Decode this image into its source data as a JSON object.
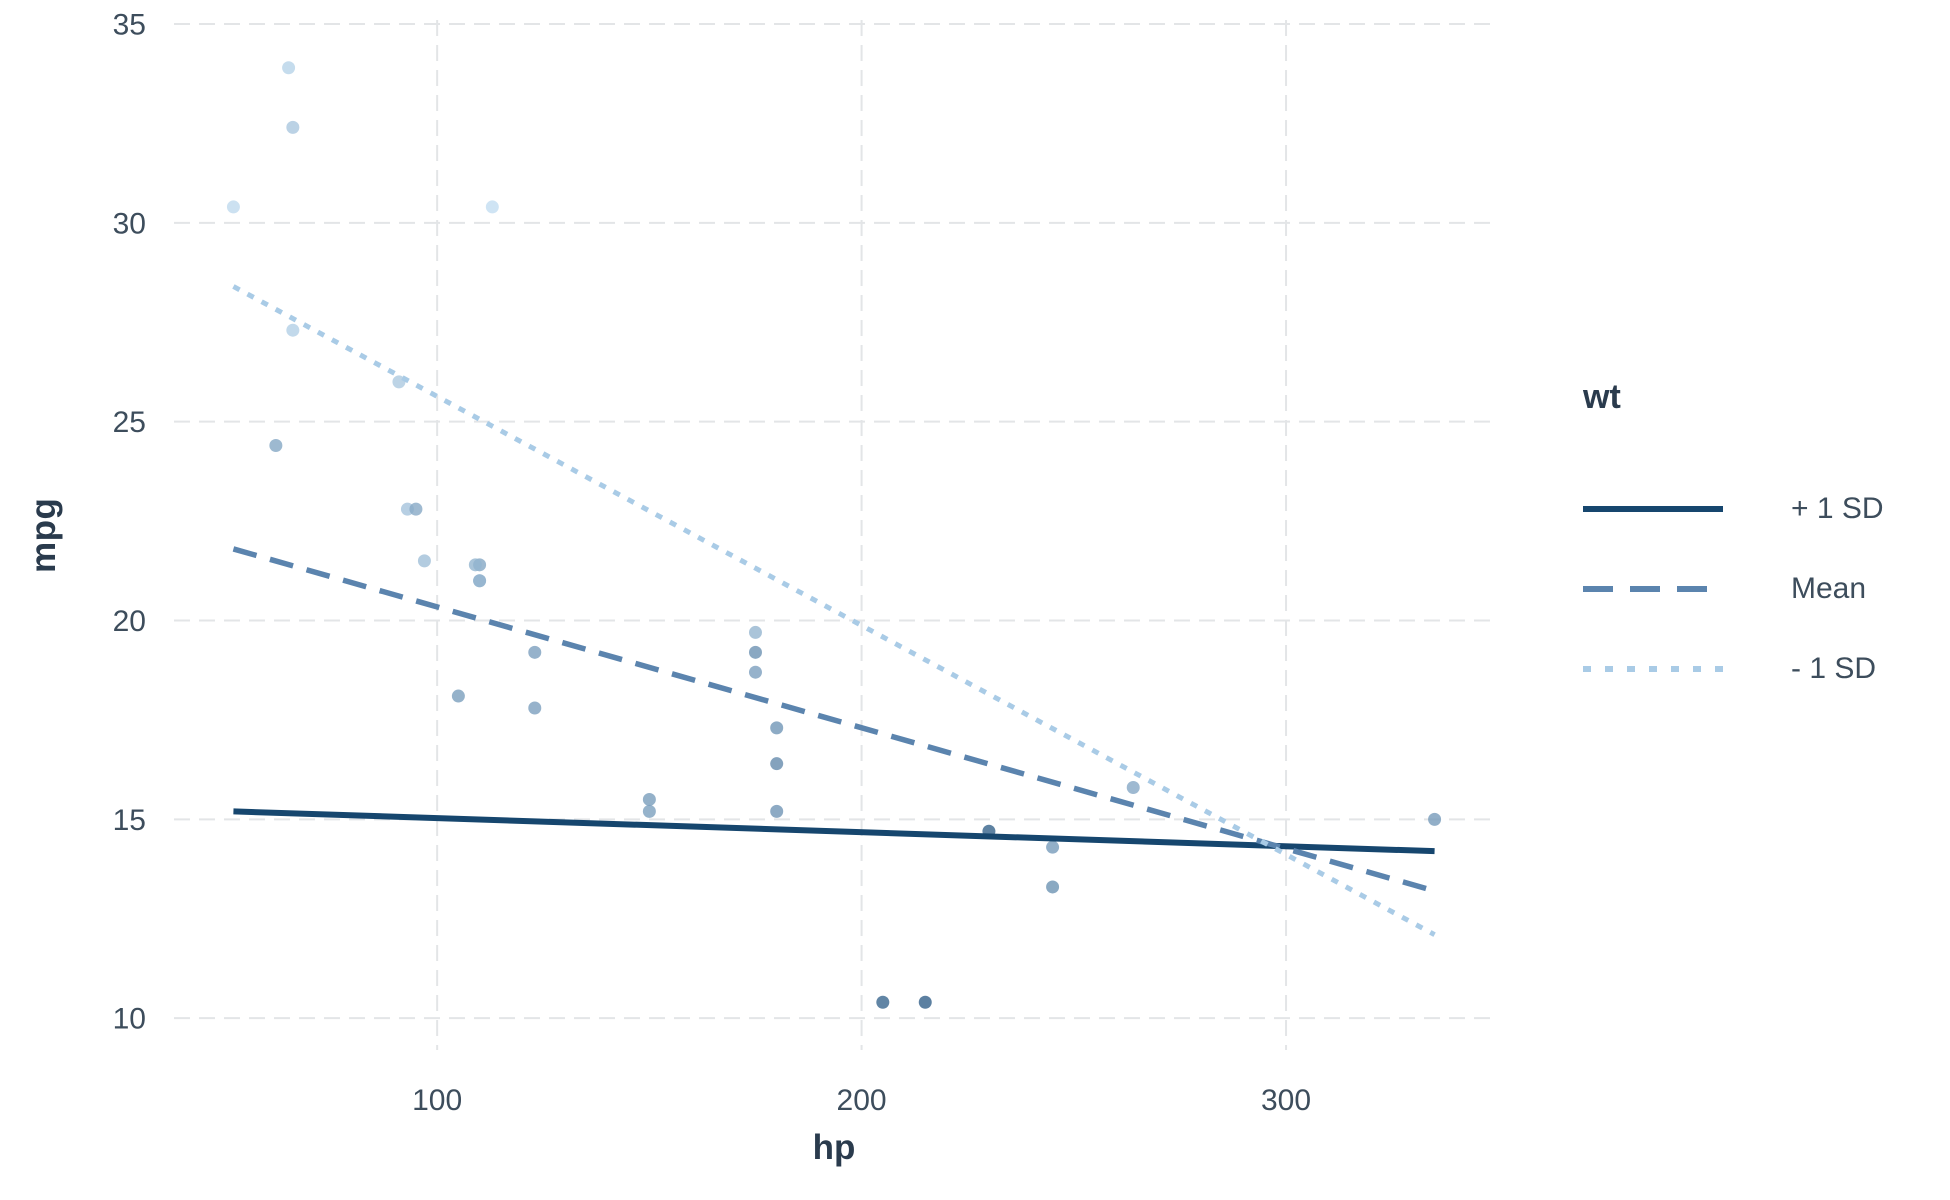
{
  "chart_data": {
    "type": "scatter",
    "title": "",
    "xlabel": "hp",
    "ylabel": "mpg",
    "x_axis": {
      "ticks": [
        100,
        200,
        300
      ],
      "range": [
        38,
        349
      ]
    },
    "y_axis": {
      "ticks": [
        10,
        15,
        20,
        25,
        30,
        35
      ],
      "range": [
        9.2,
        35.1
      ]
    },
    "grid": {
      "visible": true,
      "style": "dashed",
      "color": "#E3E5E7",
      "width": 2
    },
    "legend": {
      "title": "wt",
      "position": "right",
      "entries": [
        "+ 1 SD",
        "Mean",
        "- 1 SD"
      ]
    },
    "lines": [
      {
        "label": "+ 1 SD",
        "style": "solid",
        "color": "#16466E",
        "x": [
          52,
          335
        ],
        "y": [
          15.2,
          14.2
        ]
      },
      {
        "label": "Mean",
        "style": "long-dash",
        "color": "#5B84AE",
        "x": [
          52,
          335
        ],
        "y": [
          21.8,
          13.2
        ]
      },
      {
        "label": "- 1 SD",
        "style": "dotted",
        "color": "#A9CBE6",
        "x": [
          52,
          335
        ],
        "y": [
          28.4,
          12.1
        ]
      }
    ],
    "points": [
      {
        "hp": 110,
        "mpg": 21.0,
        "wt": 2.62
      },
      {
        "hp": 110,
        "mpg": 21.0,
        "wt": 2.875
      },
      {
        "hp": 93,
        "mpg": 22.8,
        "wt": 2.32
      },
      {
        "hp": 110,
        "mpg": 21.4,
        "wt": 3.215
      },
      {
        "hp": 175,
        "mpg": 18.7,
        "wt": 3.44
      },
      {
        "hp": 105,
        "mpg": 18.1,
        "wt": 3.46
      },
      {
        "hp": 245,
        "mpg": 14.3,
        "wt": 3.57
      },
      {
        "hp": 62,
        "mpg": 24.4,
        "wt": 3.19
      },
      {
        "hp": 95,
        "mpg": 22.8,
        "wt": 3.15
      },
      {
        "hp": 123,
        "mpg": 19.2,
        "wt": 3.44
      },
      {
        "hp": 123,
        "mpg": 17.8,
        "wt": 3.44
      },
      {
        "hp": 180,
        "mpg": 16.4,
        "wt": 4.07
      },
      {
        "hp": 180,
        "mpg": 17.3,
        "wt": 3.73
      },
      {
        "hp": 180,
        "mpg": 15.2,
        "wt": 3.78
      },
      {
        "hp": 205,
        "mpg": 10.4,
        "wt": 5.25
      },
      {
        "hp": 215,
        "mpg": 10.4,
        "wt": 5.424
      },
      {
        "hp": 230,
        "mpg": 14.7,
        "wt": 5.345
      },
      {
        "hp": 66,
        "mpg": 32.4,
        "wt": 2.2
      },
      {
        "hp": 52,
        "mpg": 30.4,
        "wt": 1.615
      },
      {
        "hp": 65,
        "mpg": 33.9,
        "wt": 1.835
      },
      {
        "hp": 97,
        "mpg": 21.5,
        "wt": 2.465
      },
      {
        "hp": 150,
        "mpg": 15.5,
        "wt": 3.52
      },
      {
        "hp": 150,
        "mpg": 15.2,
        "wt": 3.435
      },
      {
        "hp": 245,
        "mpg": 13.3,
        "wt": 3.84
      },
      {
        "hp": 175,
        "mpg": 19.2,
        "wt": 3.845
      },
      {
        "hp": 66,
        "mpg": 27.3,
        "wt": 1.935
      },
      {
        "hp": 91,
        "mpg": 26.0,
        "wt": 2.14
      },
      {
        "hp": 113,
        "mpg": 30.4,
        "wt": 1.513
      },
      {
        "hp": 264,
        "mpg": 15.8,
        "wt": 3.17
      },
      {
        "hp": 175,
        "mpg": 19.7,
        "wt": 2.77
      },
      {
        "hp": 335,
        "mpg": 15.0,
        "wt": 3.57
      },
      {
        "hp": 109,
        "mpg": 21.4,
        "wt": 2.78
      }
    ],
    "point_style": {
      "color_scale_variable": "wt",
      "min_wt": 1.513,
      "max_wt": 5.424,
      "min_color": "#C3DDF1",
      "max_color": "#336089",
      "opacity": 0.8,
      "radius": 6.5
    },
    "text_colors": {
      "axis_title": "#2A3B4D",
      "tick_label": "#3D4D5C"
    }
  }
}
